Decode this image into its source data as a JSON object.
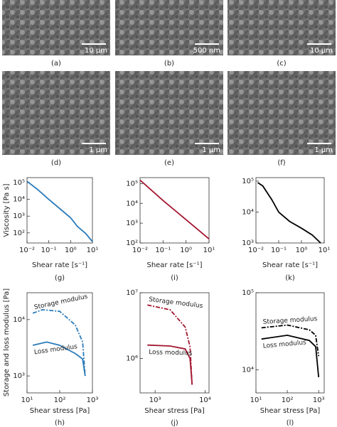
{
  "images": [
    {
      "label": "(a)",
      "scale_bar": "10 μm"
    },
    {
      "label": "(b)",
      "scale_bar": "500 nm"
    },
    {
      "label": "(c)",
      "scale_bar": "10 μm"
    },
    {
      "label": "(d)",
      "scale_bar": "1 μm"
    },
    {
      "label": "(e)",
      "scale_bar": "1 μm"
    },
    {
      "label": "(f)",
      "scale_bar": "1 μm"
    }
  ],
  "chart_data": [
    {
      "type": "line",
      "panel": "(g)",
      "xlabel": "Shear rate [s⁻¹]",
      "ylabel": "Viscosity [Pa s]",
      "log_x": true,
      "log_y": true,
      "xlim": [
        0.01,
        10
      ],
      "ylim": [
        25,
        200000
      ],
      "xticks": [
        {
          "value": 0.01,
          "label": "10⁻²"
        },
        {
          "value": 0.1,
          "label": "10⁻¹"
        },
        {
          "value": 1,
          "label": "10⁰"
        },
        {
          "value": 10,
          "label": "10¹"
        }
      ],
      "yticks": [
        {
          "value": 100,
          "label": "10²"
        },
        {
          "value": 1000,
          "label": "10³"
        },
        {
          "value": 10000,
          "label": "10⁴"
        },
        {
          "value": 100000,
          "label": "10⁵"
        }
      ],
      "series": [
        {
          "color": "#2a7ab9",
          "x": [
            0.01,
            0.03,
            0.1,
            0.3,
            1,
            2,
            5,
            10
          ],
          "values": [
            120000,
            40000,
            10000,
            3000,
            800,
            250,
            90,
            30
          ]
        }
      ]
    },
    {
      "type": "line",
      "panel": "(i)",
      "xlabel": "Shear rate [s⁻¹]",
      "log_x": true,
      "log_y": true,
      "xlim": [
        0.01,
        10
      ],
      "ylim": [
        100,
        200000
      ],
      "xticks": [
        {
          "value": 0.01,
          "label": "10⁻²"
        },
        {
          "value": 0.1,
          "label": "10⁻¹"
        },
        {
          "value": 1,
          "label": "10⁰"
        },
        {
          "value": 10,
          "label": "10¹"
        }
      ],
      "yticks": [
        {
          "value": 100,
          "label": "10²"
        },
        {
          "value": 1000,
          "label": "10³"
        },
        {
          "value": 10000,
          "label": "10⁴"
        },
        {
          "value": 100000,
          "label": "10⁵"
        }
      ],
      "series": [
        {
          "color": "#a3162f",
          "x": [
            0.01,
            0.1,
            1,
            10
          ],
          "values": [
            150000,
            14000,
            1500,
            160
          ]
        }
      ]
    },
    {
      "type": "line",
      "panel": "(k)",
      "xlabel": "Shear rate [s⁻¹]",
      "log_x": true,
      "log_y": true,
      "xlim": [
        0.01,
        10
      ],
      "ylim": [
        1000,
        130000
      ],
      "xticks": [
        {
          "value": 0.01,
          "label": "10⁻²"
        },
        {
          "value": 0.1,
          "label": "10⁻¹"
        },
        {
          "value": 1,
          "label": "10⁰"
        },
        {
          "value": 10,
          "label": "10¹"
        }
      ],
      "yticks": [
        {
          "value": 1000,
          "label": "10³"
        },
        {
          "value": 10000,
          "label": "10⁴"
        },
        {
          "value": 100000,
          "label": "10⁵"
        }
      ],
      "series": [
        {
          "color": "#000000",
          "x": [
            0.012,
            0.02,
            0.05,
            0.1,
            0.3,
            1,
            3,
            7
          ],
          "values": [
            90000,
            70000,
            25000,
            10000,
            5000,
            3000,
            1800,
            1000
          ]
        }
      ]
    },
    {
      "type": "line",
      "panel": "(h)",
      "xlabel": "Shear stress [Pa]",
      "ylabel": "Storage and loss modulus [Pa]",
      "log_x": true,
      "log_y": true,
      "xlim": [
        10,
        1000
      ],
      "ylim": [
        500,
        30000
      ],
      "xticks": [
        {
          "value": 10,
          "label": "10¹"
        },
        {
          "value": 100,
          "label": "10²"
        },
        {
          "value": 1000,
          "label": "10³"
        }
      ],
      "yticks": [
        {
          "value": 1000,
          "label": "10³"
        },
        {
          "value": 10000,
          "label": "10⁴"
        }
      ],
      "series": [
        {
          "name": "Storage modulus",
          "color": "#2a7ab9",
          "linestyle": "dash",
          "x": [
            15,
            30,
            100,
            300,
            500,
            600
          ],
          "values": [
            13000,
            15000,
            14000,
            8000,
            4000,
            1000
          ]
        },
        {
          "name": "Loss modulus",
          "color": "#2a7ab9",
          "linestyle": "solid",
          "x": [
            15,
            40,
            100,
            300,
            500,
            600
          ],
          "values": [
            3500,
            4000,
            3500,
            2500,
            2000,
            1000
          ]
        }
      ]
    },
    {
      "type": "line",
      "panel": "(j)",
      "xlabel": "Shear stress [Pa]",
      "log_x": true,
      "log_y": true,
      "xlim": [
        500,
        12000
      ],
      "ylim": [
        300000,
        10000000
      ],
      "xticks": [
        {
          "value": 1000,
          "label": "10³"
        },
        {
          "value": 10000,
          "label": "10⁴"
        }
      ],
      "yticks": [
        {
          "value": 1000000,
          "label": "10⁶"
        },
        {
          "value": 10000000,
          "label": "10⁷"
        }
      ],
      "series": [
        {
          "name": "Storage modulus",
          "color": "#a3162f",
          "linestyle": "dash",
          "x": [
            700,
            2000,
            4000,
            5000,
            5500
          ],
          "values": [
            6500000,
            5500000,
            3000000,
            1500000,
            400000
          ]
        },
        {
          "name": "Loss modulus",
          "color": "#a3162f",
          "linestyle": "solid",
          "x": [
            700,
            2000,
            4000,
            5000,
            5500
          ],
          "values": [
            1600000,
            1550000,
            1400000,
            1000000,
            400000
          ]
        }
      ]
    },
    {
      "type": "line",
      "panel": "(l)",
      "xlabel": "Shear stress [Pa]",
      "log_x": true,
      "log_y": true,
      "xlim": [
        10,
        1500
      ],
      "ylim": [
        5000,
        100000
      ],
      "xticks": [
        {
          "value": 10,
          "label": "10¹"
        },
        {
          "value": 100,
          "label": "10²"
        },
        {
          "value": 1000,
          "label": "10³"
        }
      ],
      "yticks": [
        {
          "value": 10000,
          "label": "10⁴"
        },
        {
          "value": 100000,
          "label": "10⁵"
        }
      ],
      "series": [
        {
          "name": "Storage modulus",
          "color": "#000000",
          "linestyle": "dash",
          "x": [
            15,
            100,
            500,
            800,
            1000
          ],
          "values": [
            35000,
            38000,
            33000,
            28000,
            15000
          ]
        },
        {
          "name": "Loss modulus",
          "color": "#000000",
          "linestyle": "solid",
          "x": [
            15,
            100,
            500,
            800,
            1000
          ],
          "values": [
            25000,
            28000,
            24000,
            20000,
            8000
          ]
        }
      ]
    }
  ]
}
